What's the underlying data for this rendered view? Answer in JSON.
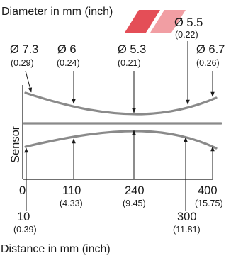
{
  "title": "Diameter in mm (inch)",
  "xlabel": "Distance in mm (inch)",
  "sensor_label": "Sensor",
  "diameters": [
    {
      "main": "Ø 7.3",
      "sub": "(0.29)"
    },
    {
      "main": "Ø 6",
      "sub": "(0.24)"
    },
    {
      "main": "Ø 5.3",
      "sub": "(0.21)"
    },
    {
      "main": "Ø 5.5",
      "sub": "(0.22)"
    },
    {
      "main": "Ø 6.7",
      "sub": "(0.26)"
    }
  ],
  "distances": [
    {
      "main": "0",
      "sub": ""
    },
    {
      "main": "10",
      "sub": "(0.39)"
    },
    {
      "main": "110",
      "sub": "(4.33)"
    },
    {
      "main": "240",
      "sub": "(9.45)"
    },
    {
      "main": "300",
      "sub": "(11.81)"
    },
    {
      "main": "400",
      "sub": "(15.75)"
    }
  ],
  "watermark_color": "#e0303a"
}
